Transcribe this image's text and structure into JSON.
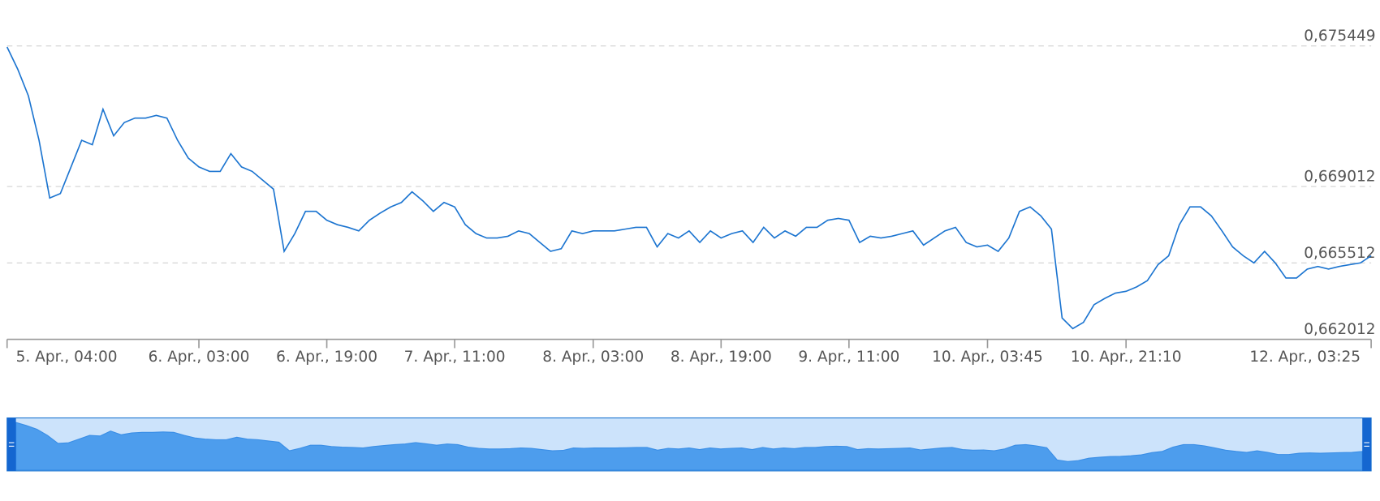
{
  "chart_data": {
    "type": "line",
    "series": [
      {
        "color": "#1b74d0",
        "values": [
          0.675402,
          0.674385,
          0.673164,
          0.671129,
          0.668483,
          0.668687,
          0.669908,
          0.671129,
          0.670925,
          0.672553,
          0.671332,
          0.671943,
          0.672146,
          0.672146,
          0.672268,
          0.672146,
          0.671129,
          0.670315,
          0.669908,
          0.669704,
          0.669704,
          0.670518,
          0.669908,
          0.669704,
          0.669297,
          0.66889,
          0.666041,
          0.666855,
          0.667873,
          0.667873,
          0.667466,
          0.667262,
          0.66714,
          0.666977,
          0.667466,
          0.667791,
          0.668076,
          0.66828,
          0.668768,
          0.668361,
          0.667873,
          0.66828,
          0.668076,
          0.667262,
          0.666855,
          0.666652,
          0.666652,
          0.666733,
          0.666977,
          0.666855,
          0.666448,
          0.666041,
          0.666163,
          0.666977,
          0.666855,
          0.666977,
          0.666977,
          0.666977,
          0.667059,
          0.66714,
          0.66714,
          0.666245,
          0.666855,
          0.666652,
          0.666977,
          0.666448,
          0.666977,
          0.666652,
          0.666855,
          0.666977,
          0.666448,
          0.66714,
          0.666652,
          0.666977,
          0.666733,
          0.66714,
          0.66714,
          0.667466,
          0.667547,
          0.667466,
          0.666448,
          0.666733,
          0.666652,
          0.666733,
          0.666855,
          0.666977,
          0.666326,
          0.666652,
          0.666977,
          0.66714,
          0.666448,
          0.666245,
          0.666326,
          0.666041,
          0.666652,
          0.667873,
          0.668076,
          0.667669,
          0.667059,
          0.662989,
          0.6625,
          0.662785,
          0.663599,
          0.663884,
          0.664128,
          0.66421,
          0.664413,
          0.664698,
          0.665431,
          0.665838,
          0.667262,
          0.668076,
          0.668076,
          0.667669,
          0.666977,
          0.666245,
          0.665838,
          0.665512,
          0.666041,
          0.665512,
          0.66482,
          0.66482,
          0.665227,
          0.665349,
          0.665227,
          0.665349,
          0.665431,
          0.665512,
          0.665838
        ]
      }
    ],
    "xlim": [
      0,
      128
    ],
    "xticks": [
      {
        "value": 0,
        "label": "5. Apr., 04:00"
      },
      {
        "value": 18,
        "label": "6. Apr., 03:00"
      },
      {
        "value": 30,
        "label": "6. Apr., 19:00"
      },
      {
        "value": 42,
        "label": "7. Apr., 11:00"
      },
      {
        "value": 55,
        "label": "8. Apr., 03:00"
      },
      {
        "value": 67,
        "label": "8. Apr., 19:00"
      },
      {
        "value": 79,
        "label": "9. Apr., 11:00"
      },
      {
        "value": 92,
        "label": "10. Apr., 03:45"
      },
      {
        "value": 105,
        "label": "10. Apr., 21:10"
      },
      {
        "value": 128,
        "label": "12. Apr., 03:25"
      }
    ],
    "ylim": [
      0.662012,
      0.675449
    ],
    "yticks": [
      {
        "value": 0.662012,
        "label": "0,662012"
      },
      {
        "value": 0.665512,
        "label": "0,665512"
      },
      {
        "value": 0.669012,
        "label": "0,669012"
      },
      {
        "value": 0.675449,
        "label": "0,675449"
      }
    ],
    "grid": true,
    "navigator": true
  }
}
